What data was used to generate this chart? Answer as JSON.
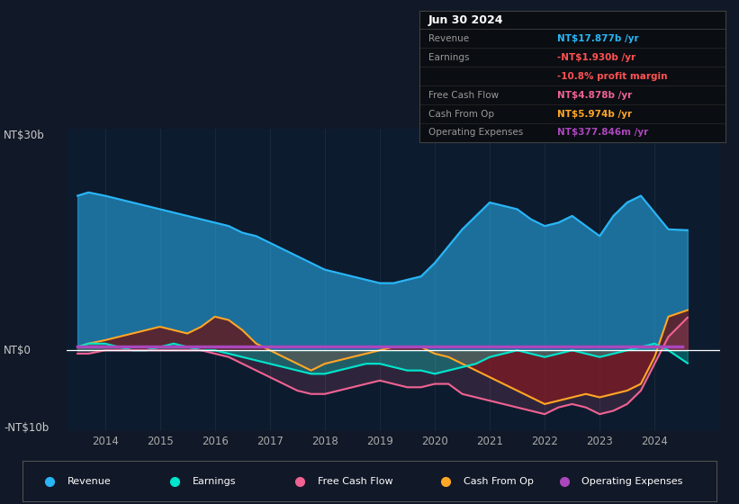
{
  "bg_color": "#111827",
  "plot_bg_color": "#0d1b2e",
  "y_label_top": "NT$30b",
  "y_label_zero": "NT$0",
  "y_label_bottom": "-NT$10b",
  "ylim": [
    -12,
    33
  ],
  "xlim": [
    2013.3,
    2025.2
  ],
  "x_ticks": [
    2014,
    2015,
    2016,
    2017,
    2018,
    2019,
    2020,
    2021,
    2022,
    2023,
    2024
  ],
  "revenue_color": "#29b6f6",
  "earnings_color": "#00e5cc",
  "fcf_color": "#f06292",
  "cashop_color": "#ffa726",
  "opex_color": "#ab47bc",
  "table_header": "Jun 30 2024",
  "table_rows": [
    {
      "label": "Revenue",
      "value": "NT$17.877b",
      "suffix": " /yr",
      "color": "#29b6f6"
    },
    {
      "label": "Earnings",
      "value": "-NT$1.930b",
      "suffix": " /yr",
      "color": "#ff5252"
    },
    {
      "label": "",
      "value": "-10.8%",
      "suffix": " profit margin",
      "color": "#ff5252"
    },
    {
      "label": "Free Cash Flow",
      "value": "NT$4.878b",
      "suffix": " /yr",
      "color": "#f06292"
    },
    {
      "label": "Cash From Op",
      "value": "NT$5.974b",
      "suffix": " /yr",
      "color": "#ffa726"
    },
    {
      "label": "Operating Expenses",
      "value": "NT$377.846m",
      "suffix": " /yr",
      "color": "#ab47bc"
    }
  ],
  "legend_items": [
    {
      "label": "Revenue",
      "color": "#29b6f6"
    },
    {
      "label": "Earnings",
      "color": "#00e5cc"
    },
    {
      "label": "Free Cash Flow",
      "color": "#f06292"
    },
    {
      "label": "Cash From Op",
      "color": "#ffa726"
    },
    {
      "label": "Operating Expenses",
      "color": "#ab47bc"
    }
  ],
  "revenue_x": [
    2013.5,
    2013.7,
    2014.0,
    2014.25,
    2014.5,
    2014.75,
    2015.0,
    2015.25,
    2015.5,
    2015.75,
    2016.0,
    2016.25,
    2016.5,
    2016.75,
    2017.0,
    2017.25,
    2017.5,
    2017.75,
    2018.0,
    2018.25,
    2018.5,
    2018.75,
    2019.0,
    2019.25,
    2019.5,
    2019.75,
    2020.0,
    2020.25,
    2020.5,
    2020.75,
    2021.0,
    2021.25,
    2021.5,
    2021.75,
    2022.0,
    2022.25,
    2022.5,
    2022.75,
    2023.0,
    2023.25,
    2023.5,
    2023.75,
    2024.0,
    2024.25,
    2024.6
  ],
  "revenue_y": [
    23,
    23.5,
    23,
    22.5,
    22,
    21.5,
    21,
    20.5,
    20,
    19.5,
    19,
    18.5,
    17.5,
    17,
    16,
    15,
    14,
    13,
    12,
    11.5,
    11,
    10.5,
    10,
    10,
    10.5,
    11,
    13,
    15.5,
    18,
    20,
    22,
    21.5,
    21,
    19.5,
    18.5,
    19,
    20,
    18.5,
    17,
    20,
    22,
    23,
    20.5,
    18,
    17.877
  ],
  "earnings_x": [
    2013.5,
    2013.7,
    2014.0,
    2014.25,
    2014.5,
    2014.75,
    2015.0,
    2015.25,
    2015.5,
    2015.75,
    2016.0,
    2016.25,
    2016.5,
    2016.75,
    2017.0,
    2017.25,
    2017.5,
    2017.75,
    2018.0,
    2018.25,
    2018.5,
    2018.75,
    2019.0,
    2019.25,
    2019.5,
    2019.75,
    2020.0,
    2020.25,
    2020.5,
    2020.75,
    2021.0,
    2021.25,
    2021.5,
    2021.75,
    2022.0,
    2022.25,
    2022.5,
    2022.75,
    2023.0,
    2023.25,
    2023.5,
    2023.75,
    2024.0,
    2024.25,
    2024.6
  ],
  "earnings_y": [
    0.5,
    1,
    1,
    0.5,
    0,
    0,
    0.5,
    1,
    0.5,
    0,
    0,
    -0.5,
    -1,
    -1.5,
    -2,
    -2.5,
    -3,
    -3.5,
    -3.5,
    -3,
    -2.5,
    -2,
    -2,
    -2.5,
    -3,
    -3,
    -3.5,
    -3,
    -2.5,
    -2,
    -1,
    -0.5,
    0,
    -0.5,
    -1,
    -0.5,
    0,
    -0.5,
    -1,
    -0.5,
    0,
    0.5,
    1,
    0,
    -1.93
  ],
  "cashop_x": [
    2013.5,
    2013.7,
    2014.0,
    2014.25,
    2014.5,
    2014.75,
    2015.0,
    2015.25,
    2015.5,
    2015.75,
    2016.0,
    2016.25,
    2016.5,
    2016.75,
    2017.0,
    2017.25,
    2017.5,
    2017.75,
    2018.0,
    2018.25,
    2018.5,
    2018.75,
    2019.0,
    2019.25,
    2019.5,
    2019.75,
    2020.0,
    2020.25,
    2020.5,
    2020.75,
    2021.0,
    2021.25,
    2021.5,
    2021.75,
    2022.0,
    2022.25,
    2022.5,
    2022.75,
    2023.0,
    2023.25,
    2023.5,
    2023.75,
    2024.0,
    2024.25,
    2024.6
  ],
  "cashop_y": [
    0.5,
    1,
    1.5,
    2,
    2.5,
    3,
    3.5,
    3,
    2.5,
    3.5,
    5,
    4.5,
    3,
    1,
    0,
    -1,
    -2,
    -3,
    -2,
    -1.5,
    -1,
    -0.5,
    0,
    0.5,
    0.5,
    0.5,
    -0.5,
    -1,
    -2,
    -3,
    -4,
    -5,
    -6,
    -7,
    -8,
    -7.5,
    -7,
    -6.5,
    -7,
    -6.5,
    -6,
    -5,
    -1,
    5,
    5.974
  ],
  "fcf_x": [
    2013.5,
    2013.7,
    2014.0,
    2014.25,
    2014.5,
    2014.75,
    2015.0,
    2015.25,
    2015.5,
    2015.75,
    2016.0,
    2016.25,
    2016.5,
    2016.75,
    2017.0,
    2017.25,
    2017.5,
    2017.75,
    2018.0,
    2018.25,
    2018.5,
    2018.75,
    2019.0,
    2019.25,
    2019.5,
    2019.75,
    2020.0,
    2020.25,
    2020.5,
    2020.75,
    2021.0,
    2021.25,
    2021.5,
    2021.75,
    2022.0,
    2022.25,
    2022.5,
    2022.75,
    2023.0,
    2023.25,
    2023.5,
    2023.75,
    2024.0,
    2024.25,
    2024.6
  ],
  "fcf_y": [
    -0.5,
    -0.5,
    0,
    0,
    0,
    0,
    0,
    0,
    0,
    0,
    -0.5,
    -1,
    -2,
    -3,
    -4,
    -5,
    -6,
    -6.5,
    -6.5,
    -6,
    -5.5,
    -5,
    -4.5,
    -5,
    -5.5,
    -5.5,
    -5,
    -5,
    -6.5,
    -7,
    -7.5,
    -8,
    -8.5,
    -9,
    -9.5,
    -8.5,
    -8,
    -8.5,
    -9.5,
    -9,
    -8,
    -6,
    -2,
    2,
    4.878
  ],
  "opex_x": [
    2013.5,
    2019.5,
    2019.75,
    2020.0,
    2020.5,
    2021.0,
    2021.5,
    2022.0,
    2022.5,
    2023.0,
    2023.5,
    2024.0,
    2024.5
  ],
  "opex_y": [
    0.5,
    0.5,
    0.5,
    0.5,
    0.5,
    0.5,
    0.5,
    0.5,
    0.5,
    0.5,
    0.5,
    0.5,
    0.5
  ]
}
